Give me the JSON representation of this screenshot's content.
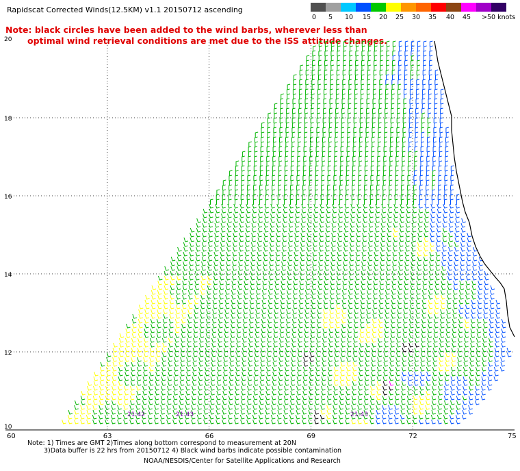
{
  "title": "Rapidscat Corrected Winds(12.5KM) v1.1 20150712 ascending",
  "note_lines": [
    "Note: black circles have been added to the wind barbs, wherever less than",
    "optimal wind retrieval conditions are met due to the ISS attitude changes."
  ],
  "legend": {
    "colors": [
      "#505050",
      "#a0a0a0",
      "#00c8ff",
      "#0050ff",
      "#00c800",
      "#ffff00",
      "#ff9600",
      "#ff6400",
      "#ff0000",
      "#8b4513",
      "#ff00ff",
      "#a000c8",
      "#320064"
    ],
    "labels": [
      "0",
      "5",
      "10",
      "15",
      "20",
      "25",
      "30",
      "35",
      "40",
      "45",
      ">50 knots"
    ]
  },
  "axes": {
    "lon_labels": [
      "60",
      "63",
      "66",
      "69",
      "72",
      "75"
    ],
    "lat_labels": [
      "20",
      "18",
      "16",
      "14",
      "12",
      "10"
    ],
    "lon_range": [
      60,
      75
    ],
    "lat_range": [
      10,
      20
    ]
  },
  "time_labels": [
    "21:42",
    "21:43",
    "21:43"
  ],
  "footer": {
    "line1": "Note: 1) Times are GMT 2)Times along bottom correspond to measurement at 20N",
    "line2": "3)Data buffer is 22 hrs from 20150712 4) Black wind barbs indicate possible contamination",
    "credit": "NOAA/NESDIS/Center for Satellite Applications and Research"
  }
}
